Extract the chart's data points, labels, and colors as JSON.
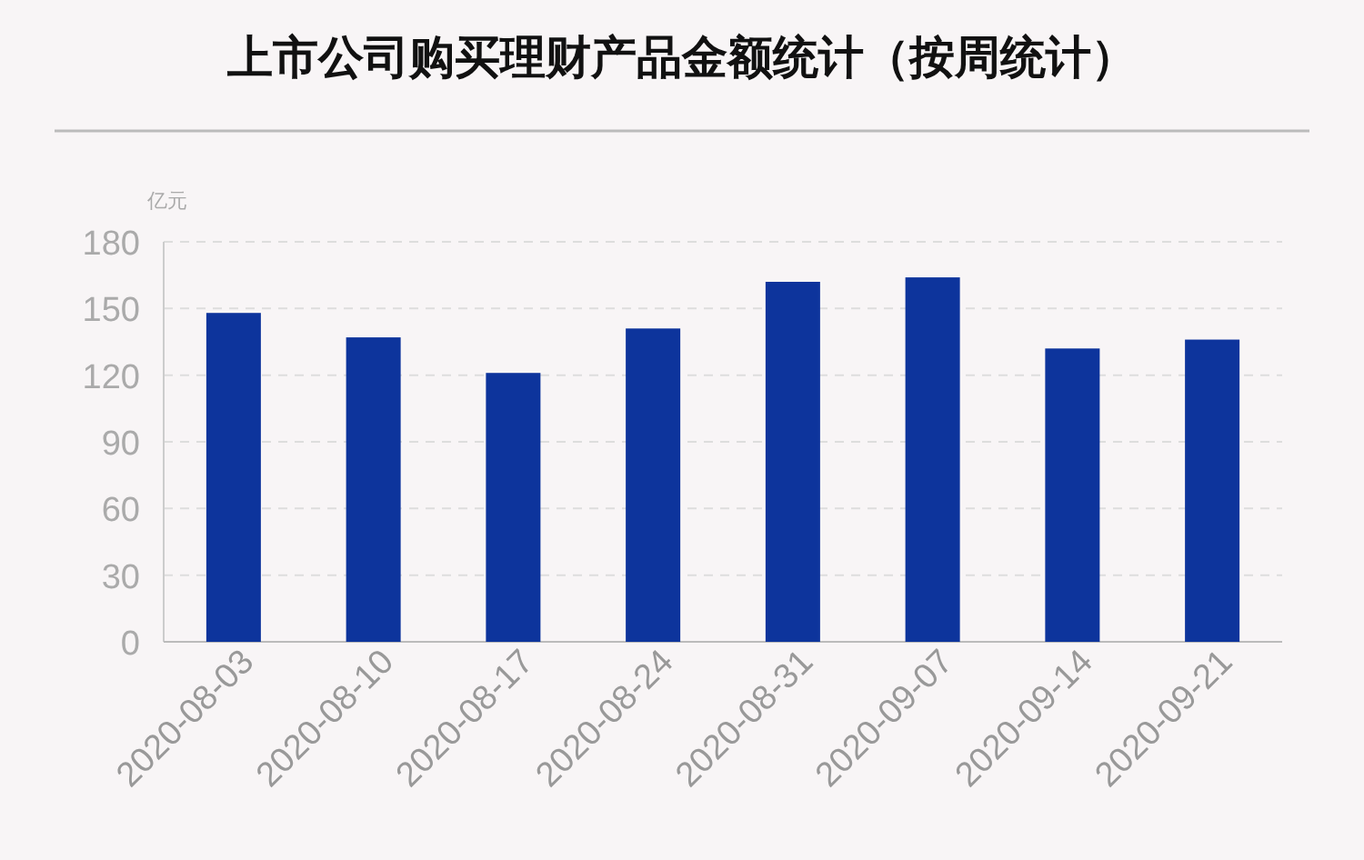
{
  "chart_data": {
    "type": "bar",
    "title": "上市公司购买理财产品金额统计（按周统计）",
    "ylabel": "亿元",
    "categories": [
      "2020-08-03",
      "2020-08-10",
      "2020-08-17",
      "2020-08-24",
      "2020-08-31",
      "2020-09-07",
      "2020-09-14",
      "2020-09-21"
    ],
    "values": [
      148,
      137,
      121,
      141,
      162,
      164,
      132,
      136
    ],
    "color": "#0d349c",
    "ylim": [
      0,
      180
    ],
    "yticks": [
      0,
      30,
      60,
      90,
      120,
      150,
      180
    ],
    "grid": "y",
    "legend": false
  }
}
